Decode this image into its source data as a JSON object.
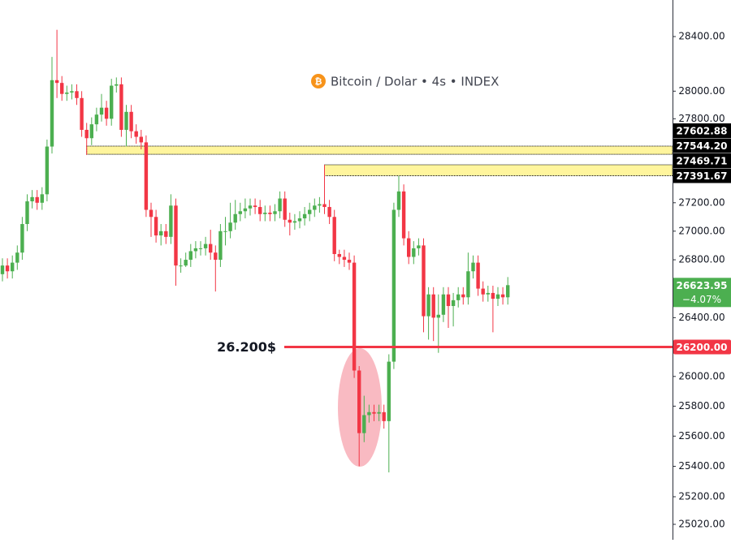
{
  "chart_data": {
    "type": "candlestick",
    "title": "Bitcoin / Dolar • 4s • INDEX",
    "icon_symbol": "₿",
    "log_scale": true,
    "up_color": "#4caf50",
    "down_color": "#f23645",
    "open": [
      26700,
      26760,
      26720,
      26780,
      26850,
      27050,
      27210,
      27240,
      27200,
      27260,
      27600,
      28080,
      28060,
      27980,
      27990,
      28000,
      27950,
      27720,
      27660,
      27760,
      27830,
      27880,
      27800,
      28040,
      28050,
      27720,
      27850,
      27710,
      27670,
      27630,
      27150,
      27100,
      26970,
      27000,
      26960,
      27180,
      26760,
      26760,
      26800,
      26860,
      26880,
      26880,
      26910,
      26850,
      26800,
      27000,
      27000,
      27060,
      27120,
      27140,
      27160,
      27180,
      27170,
      27120,
      27130,
      27120,
      27140,
      27230,
      27080,
      27060,
      27070,
      27090,
      27120,
      27150,
      27180,
      27190,
      27170,
      27100,
      26840,
      26820,
      26800,
      26780,
      26040,
      25620,
      25740,
      25760,
      25750,
      25760,
      25700,
      26100,
      27150,
      27280,
      26950,
      26820,
      26880,
      26900,
      26410,
      26560,
      26400,
      26420,
      26560,
      26480,
      26520,
      26560,
      26540,
      26720,
      26780,
      26600,
      26560,
      26570,
      26530,
      26560,
      26540
    ],
    "high": [
      26810,
      26810,
      26830,
      26900,
      27100,
      27260,
      27290,
      27290,
      27310,
      27650,
      28250,
      28450,
      28110,
      28040,
      28050,
      28050,
      28000,
      27770,
      27810,
      27880,
      27980,
      27930,
      28090,
      28100,
      28100,
      27900,
      27900,
      27760,
      27720,
      27680,
      27200,
      27150,
      27050,
      27050,
      27260,
      27230,
      26810,
      26850,
      26910,
      26930,
      26930,
      26960,
      27010,
      26900,
      27050,
      27100,
      27200,
      27220,
      27200,
      27230,
      27230,
      27230,
      27220,
      27180,
      27180,
      27190,
      27280,
      27280,
      27130,
      27120,
      27140,
      27170,
      27200,
      27230,
      27240,
      27470,
      27220,
      27150,
      26870,
      26870,
      26850,
      26830,
      26070,
      25870,
      25810,
      25810,
      25810,
      25810,
      26150,
      27200,
      27390,
      27330,
      27000,
      26930,
      26950,
      26950,
      26610,
      26610,
      26560,
      26610,
      26610,
      26570,
      26610,
      26610,
      26850,
      26830,
      26830,
      26650,
      26620,
      26620,
      26610,
      26610,
      26680
    ],
    "low": [
      26650,
      26670,
      26670,
      26730,
      26800,
      27000,
      27160,
      27150,
      27150,
      27210,
      27550,
      27950,
      27930,
      27930,
      27940,
      27900,
      27670,
      27540,
      27610,
      27710,
      27780,
      27750,
      27750,
      27990,
      27670,
      27600,
      27660,
      27620,
      27580,
      27100,
      26960,
      26920,
      26900,
      26910,
      26910,
      26620,
      26710,
      26750,
      26750,
      26810,
      26830,
      26830,
      26800,
      26580,
      26750,
      26900,
      26950,
      27010,
      27070,
      27090,
      27110,
      27120,
      27070,
      27070,
      27070,
      27070,
      27090,
      27030,
      26970,
      27010,
      27020,
      27040,
      27070,
      27100,
      27130,
      27120,
      27050,
      26790,
      26770,
      26750,
      26730,
      25990,
      25400,
      25560,
      25690,
      25700,
      25700,
      25650,
      25360,
      26050,
      27100,
      26900,
      26770,
      26770,
      26830,
      26300,
      26250,
      26240,
      26160,
      26370,
      26330,
      26340,
      26470,
      26490,
      26490,
      26670,
      26550,
      26510,
      26510,
      26300,
      26480,
      26490,
      26490
    ],
    "close": [
      26760,
      26720,
      26780,
      26850,
      27050,
      27210,
      27240,
      27200,
      27260,
      27600,
      28080,
      28060,
      27980,
      27990,
      28000,
      27950,
      27720,
      27660,
      27760,
      27830,
      27880,
      27800,
      28040,
      28050,
      27720,
      27850,
      27710,
      27670,
      27630,
      27150,
      27100,
      26970,
      27000,
      26960,
      27180,
      26760,
      26760,
      26800,
      26860,
      26880,
      26880,
      26910,
      26850,
      26800,
      27000,
      27000,
      27060,
      27120,
      27140,
      27160,
      27180,
      27170,
      27120,
      27130,
      27120,
      27140,
      27230,
      27080,
      27060,
      27070,
      27090,
      27120,
      27150,
      27180,
      27190,
      27170,
      27100,
      26840,
      26820,
      26800,
      26780,
      26040,
      25620,
      25740,
      25760,
      25750,
      25760,
      25700,
      26100,
      27150,
      27280,
      26950,
      26820,
      26880,
      26900,
      26410,
      26560,
      26400,
      26420,
      26560,
      26480,
      26520,
      26560,
      26540,
      26720,
      26780,
      26600,
      26560,
      26570,
      26530,
      26560,
      26540,
      26623.95
    ],
    "ylim": [
      24920,
      28671
    ],
    "yticks": [
      {
        "value": 28400,
        "label": "28400.00"
      },
      {
        "value": 28000,
        "label": "28000.00"
      },
      {
        "value": 27800,
        "label": "27800.00"
      },
      {
        "value": 27200,
        "label": "27200.00"
      },
      {
        "value": 27000,
        "label": "27000.00"
      },
      {
        "value": 26800,
        "label": "26800.00"
      },
      {
        "value": 26400,
        "label": "26400.00"
      },
      {
        "value": 26000,
        "label": "26000.00"
      },
      {
        "value": 25800,
        "label": "25800.00"
      },
      {
        "value": 25600,
        "label": "25600.00"
      },
      {
        "value": 25400,
        "label": "25400.00"
      },
      {
        "value": 25200,
        "label": "25200.00"
      },
      {
        "value": 25020,
        "label": "25020.00"
      }
    ],
    "zones": [
      {
        "start": 17,
        "color": "#fff59d",
        "high": {
          "value": 27602.88,
          "label": "27602.88"
        },
        "low": {
          "value": 27544.2,
          "label": "27544.20"
        }
      },
      {
        "start": 65,
        "color": "#fff59d",
        "high": {
          "value": 27469.71,
          "label": "27469.71"
        },
        "low": {
          "value": 27391.67,
          "label": "27391.67"
        }
      }
    ],
    "level": {
      "value": 26200,
      "label": "26200.00",
      "text": "26.200$",
      "color": "#f23645"
    },
    "last_price": {
      "value": 26623.95,
      "label": "26623.95",
      "change": {
        "value": -4.07,
        "label": "−4.07%"
      }
    }
  }
}
